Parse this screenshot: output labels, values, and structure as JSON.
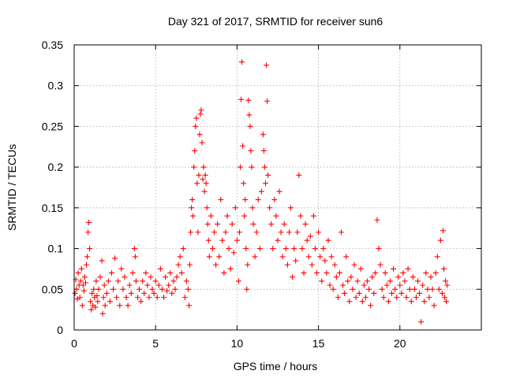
{
  "chart_data": {
    "type": "scatter",
    "title": "Day 321 of 2017, SRMTID for receiver sun6",
    "xlabel": "GPS time / hours",
    "ylabel": "SRMTID / TECUs",
    "xlim": [
      0,
      25
    ],
    "ylim": [
      0,
      0.35
    ],
    "grid": true,
    "marker": "plus",
    "color": "#ff0000",
    "x_ticks": [
      {
        "value": 0,
        "label": "0"
      },
      {
        "value": 5,
        "label": "5"
      },
      {
        "value": 10,
        "label": "10"
      },
      {
        "value": 15,
        "label": "15"
      },
      {
        "value": 20,
        "label": "20"
      }
    ],
    "y_ticks": [
      {
        "value": 0,
        "label": "0"
      },
      {
        "value": 0.05,
        "label": "0.05"
      },
      {
        "value": 0.1,
        "label": "0.1"
      },
      {
        "value": 0.15,
        "label": "0.15"
      },
      {
        "value": 0.2,
        "label": "0.2"
      },
      {
        "value": 0.25,
        "label": "0.25"
      },
      {
        "value": 0.3,
        "label": "0.3"
      },
      {
        "value": 0.35,
        "label": "0.35"
      }
    ],
    "series": [
      {
        "name": "SRMTID",
        "points": [
          [
            0.05,
            0.045
          ],
          [
            0.1,
            0.062
          ],
          [
            0.15,
            0.05
          ],
          [
            0.2,
            0.038
          ],
          [
            0.25,
            0.07
          ],
          [
            0.3,
            0.055
          ],
          [
            0.35,
            0.04
          ],
          [
            0.4,
            0.06
          ],
          [
            0.45,
            0.075
          ],
          [
            0.5,
            0.03
          ],
          [
            0.55,
            0.055
          ],
          [
            0.6,
            0.048
          ],
          [
            0.65,
            0.065
          ],
          [
            0.7,
            0.058
          ],
          [
            0.75,
            0.08
          ],
          [
            0.8,
            0.09
          ],
          [
            0.85,
            0.12
          ],
          [
            0.9,
            0.132
          ],
          [
            0.95,
            0.1
          ],
          [
            1.0,
            0.035
          ],
          [
            1.05,
            0.025
          ],
          [
            1.1,
            0.045
          ],
          [
            1.15,
            0.03
          ],
          [
            1.2,
            0.05
          ],
          [
            1.25,
            0.04
          ],
          [
            1.3,
            0.028
          ],
          [
            1.35,
            0.06
          ],
          [
            1.4,
            0.042
          ],
          [
            1.45,
            0.035
          ],
          [
            1.5,
            0.05
          ],
          [
            1.6,
            0.065
          ],
          [
            1.7,
            0.085
          ],
          [
            1.75,
            0.02
          ],
          [
            1.8,
            0.04
          ],
          [
            1.85,
            0.055
          ],
          [
            1.9,
            0.03
          ],
          [
            2.0,
            0.045
          ],
          [
            2.1,
            0.06
          ],
          [
            2.2,
            0.035
          ],
          [
            2.3,
            0.07
          ],
          [
            2.4,
            0.05
          ],
          [
            2.5,
            0.088
          ],
          [
            2.6,
            0.04
          ],
          [
            2.7,
            0.06
          ],
          [
            2.8,
            0.03
          ],
          [
            2.9,
            0.075
          ],
          [
            3.0,
            0.05
          ],
          [
            3.1,
            0.065
          ],
          [
            3.2,
            0.04
          ],
          [
            3.3,
            0.03
          ],
          [
            3.4,
            0.055
          ],
          [
            3.5,
            0.045
          ],
          [
            3.6,
            0.07
          ],
          [
            3.7,
            0.1
          ],
          [
            3.75,
            0.09
          ],
          [
            3.8,
            0.06
          ],
          [
            3.9,
            0.04
          ],
          [
            4.0,
            0.05
          ],
          [
            4.1,
            0.035
          ],
          [
            4.2,
            0.06
          ],
          [
            4.3,
            0.045
          ],
          [
            4.4,
            0.07
          ],
          [
            4.5,
            0.055
          ],
          [
            4.6,
            0.04
          ],
          [
            4.7,
            0.065
          ],
          [
            4.8,
            0.05
          ],
          [
            4.9,
            0.045
          ],
          [
            5.0,
            0.06
          ],
          [
            5.1,
            0.04
          ],
          [
            5.2,
            0.055
          ],
          [
            5.3,
            0.075
          ],
          [
            5.4,
            0.05
          ],
          [
            5.5,
            0.04
          ],
          [
            5.6,
            0.065
          ],
          [
            5.7,
            0.048
          ],
          [
            5.8,
            0.055
          ],
          [
            5.9,
            0.07
          ],
          [
            6.0,
            0.045
          ],
          [
            6.1,
            0.06
          ],
          [
            6.2,
            0.05
          ],
          [
            6.3,
            0.065
          ],
          [
            6.4,
            0.08
          ],
          [
            6.5,
            0.09
          ],
          [
            6.6,
            0.07
          ],
          [
            6.7,
            0.1
          ],
          [
            6.8,
            0.04
          ],
          [
            6.9,
            0.06
          ],
          [
            7.0,
            0.05
          ],
          [
            7.05,
            0.03
          ],
          [
            7.1,
            0.08
          ],
          [
            7.15,
            0.12
          ],
          [
            7.2,
            0.15
          ],
          [
            7.25,
            0.16
          ],
          [
            7.3,
            0.14
          ],
          [
            7.35,
            0.2
          ],
          [
            7.4,
            0.22
          ],
          [
            7.45,
            0.25
          ],
          [
            7.5,
            0.26
          ],
          [
            7.55,
            0.18
          ],
          [
            7.6,
            0.12
          ],
          [
            7.65,
            0.19
          ],
          [
            7.7,
            0.24
          ],
          [
            7.75,
            0.265
          ],
          [
            7.8,
            0.27
          ],
          [
            7.85,
            0.23
          ],
          [
            7.9,
            0.185
          ],
          [
            7.95,
            0.2
          ],
          [
            8.0,
            0.17
          ],
          [
            8.05,
            0.19
          ],
          [
            8.1,
            0.18
          ],
          [
            8.15,
            0.15
          ],
          [
            8.2,
            0.13
          ],
          [
            8.25,
            0.11
          ],
          [
            8.3,
            0.09
          ],
          [
            8.4,
            0.14
          ],
          [
            8.5,
            0.1
          ],
          [
            8.6,
            0.12
          ],
          [
            8.7,
            0.08
          ],
          [
            8.8,
            0.13
          ],
          [
            8.9,
            0.09
          ],
          [
            9.0,
            0.16
          ],
          [
            9.1,
            0.11
          ],
          [
            9.2,
            0.07
          ],
          [
            9.3,
            0.12
          ],
          [
            9.4,
            0.14
          ],
          [
            9.5,
            0.1
          ],
          [
            9.6,
            0.075
          ],
          [
            9.7,
            0.13
          ],
          [
            9.8,
            0.095
          ],
          [
            9.9,
            0.15
          ],
          [
            10.0,
            0.11
          ],
          [
            10.1,
            0.06
          ],
          [
            10.15,
            0.12
          ],
          [
            10.2,
            0.2
          ],
          [
            10.25,
            0.283
          ],
          [
            10.3,
            0.329
          ],
          [
            10.35,
            0.226
          ],
          [
            10.4,
            0.18
          ],
          [
            10.45,
            0.14
          ],
          [
            10.5,
            0.16
          ],
          [
            10.55,
            0.1
          ],
          [
            10.6,
            0.05
          ],
          [
            10.65,
            0.08
          ],
          [
            10.7,
            0.282
          ],
          [
            10.75,
            0.264
          ],
          [
            10.8,
            0.25
          ],
          [
            10.85,
            0.22
          ],
          [
            10.9,
            0.2
          ],
          [
            10.95,
            0.15
          ],
          [
            11.0,
            0.13
          ],
          [
            11.1,
            0.09
          ],
          [
            11.2,
            0.12
          ],
          [
            11.3,
            0.16
          ],
          [
            11.4,
            0.1
          ],
          [
            11.5,
            0.17
          ],
          [
            11.6,
            0.24
          ],
          [
            11.65,
            0.22
          ],
          [
            11.7,
            0.2
          ],
          [
            11.75,
            0.18
          ],
          [
            11.8,
            0.325
          ],
          [
            11.85,
            0.281
          ],
          [
            11.9,
            0.19
          ],
          [
            12.0,
            0.15
          ],
          [
            12.1,
            0.13
          ],
          [
            12.2,
            0.1
          ],
          [
            12.3,
            0.16
          ],
          [
            12.4,
            0.14
          ],
          [
            12.5,
            0.11
          ],
          [
            12.6,
            0.17
          ],
          [
            12.7,
            0.12
          ],
          [
            12.8,
            0.09
          ],
          [
            12.9,
            0.13
          ],
          [
            13.0,
            0.1
          ],
          [
            13.1,
            0.08
          ],
          [
            13.2,
            0.12
          ],
          [
            13.3,
            0.15
          ],
          [
            13.4,
            0.065
          ],
          [
            13.5,
            0.1
          ],
          [
            13.6,
            0.085
          ],
          [
            13.7,
            0.12
          ],
          [
            13.8,
            0.19
          ],
          [
            13.9,
            0.14
          ],
          [
            14.0,
            0.1
          ],
          [
            14.1,
            0.07
          ],
          [
            14.2,
            0.13
          ],
          [
            14.3,
            0.11
          ],
          [
            14.4,
            0.09
          ],
          [
            14.5,
            0.115
          ],
          [
            14.6,
            0.08
          ],
          [
            14.7,
            0.14
          ],
          [
            14.8,
            0.1
          ],
          [
            14.9,
            0.07
          ],
          [
            15.0,
            0.12
          ],
          [
            15.1,
            0.09
          ],
          [
            15.2,
            0.06
          ],
          [
            15.3,
            0.1
          ],
          [
            15.4,
            0.085
          ],
          [
            15.5,
            0.07
          ],
          [
            15.6,
            0.11
          ],
          [
            15.7,
            0.055
          ],
          [
            15.8,
            0.09
          ],
          [
            15.9,
            0.05
          ],
          [
            16.0,
            0.08
          ],
          [
            16.1,
            0.065
          ],
          [
            16.2,
            0.04
          ],
          [
            16.3,
            0.07
          ],
          [
            16.4,
            0.12
          ],
          [
            16.5,
            0.055
          ],
          [
            16.6,
            0.045
          ],
          [
            16.7,
            0.09
          ],
          [
            16.8,
            0.06
          ],
          [
            16.9,
            0.035
          ],
          [
            17.0,
            0.065
          ],
          [
            17.1,
            0.05
          ],
          [
            17.2,
            0.08
          ],
          [
            17.3,
            0.04
          ],
          [
            17.4,
            0.06
          ],
          [
            17.5,
            0.045
          ],
          [
            17.6,
            0.075
          ],
          [
            17.7,
            0.035
          ],
          [
            17.8,
            0.055
          ],
          [
            17.9,
            0.04
          ],
          [
            18.0,
            0.06
          ],
          [
            18.1,
            0.05
          ],
          [
            18.2,
            0.03
          ],
          [
            18.3,
            0.065
          ],
          [
            18.4,
            0.045
          ],
          [
            18.5,
            0.07
          ],
          [
            18.6,
            0.135
          ],
          [
            18.7,
            0.1
          ],
          [
            18.8,
            0.08
          ],
          [
            18.9,
            0.05
          ],
          [
            19.0,
            0.04
          ],
          [
            19.1,
            0.07
          ],
          [
            19.2,
            0.055
          ],
          [
            19.3,
            0.035
          ],
          [
            19.4,
            0.06
          ],
          [
            19.5,
            0.045
          ],
          [
            19.6,
            0.075
          ],
          [
            19.7,
            0.05
          ],
          [
            19.8,
            0.04
          ],
          [
            19.9,
            0.065
          ],
          [
            20.0,
            0.055
          ],
          [
            20.1,
            0.045
          ],
          [
            20.2,
            0.07
          ],
          [
            20.3,
            0.06
          ],
          [
            20.4,
            0.04
          ],
          [
            20.5,
            0.075
          ],
          [
            20.6,
            0.05
          ],
          [
            20.7,
            0.035
          ],
          [
            20.8,
            0.065
          ],
          [
            20.9,
            0.05
          ],
          [
            21.0,
            0.04
          ],
          [
            21.1,
            0.06
          ],
          [
            21.2,
            0.045
          ],
          [
            21.3,
            0.01
          ],
          [
            21.4,
            0.055
          ],
          [
            21.5,
            0.035
          ],
          [
            21.6,
            0.07
          ],
          [
            21.7,
            0.05
          ],
          [
            21.8,
            0.04
          ],
          [
            21.9,
            0.065
          ],
          [
            22.0,
            0.05
          ],
          [
            22.1,
            0.03
          ],
          [
            22.2,
            0.07
          ],
          [
            22.3,
            0.09
          ],
          [
            22.4,
            0.05
          ],
          [
            22.5,
            0.11
          ],
          [
            22.6,
            0.045
          ],
          [
            22.65,
            0.122
          ],
          [
            22.7,
            0.075
          ],
          [
            22.75,
            0.04
          ],
          [
            22.8,
            0.06
          ],
          [
            22.85,
            0.035
          ],
          [
            22.9,
            0.055
          ]
        ]
      }
    ]
  }
}
